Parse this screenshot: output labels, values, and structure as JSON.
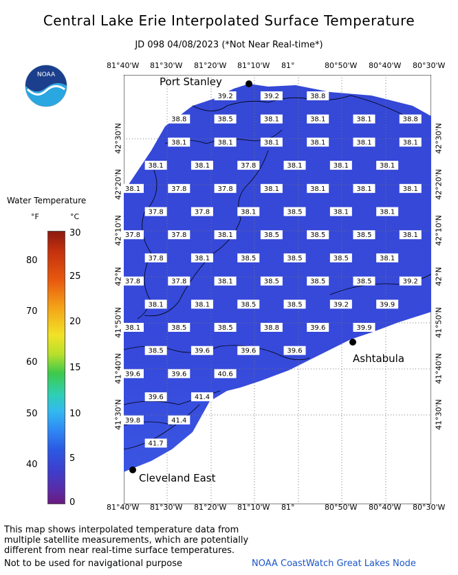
{
  "header": {
    "title": "Central Lake Erie Interpolated Surface Temperature",
    "subtitle": "JD 098 04/08/2023 (*Not Near Real-time*)"
  },
  "logo": {
    "text": "NOAA",
    "icon": "noaa-logo"
  },
  "legend": {
    "title": "Water Temperature",
    "unit_f": "°F",
    "unit_c": "°C",
    "f_ticks": [
      "80",
      "70",
      "60",
      "50",
      "40"
    ],
    "c_ticks": [
      "30",
      "25",
      "20",
      "15",
      "10",
      "5",
      "0"
    ]
  },
  "axes": {
    "lon_labels": [
      "81°40'W",
      "81°30'W",
      "81°20'W",
      "81°10'W",
      "81°",
      "80°50'W",
      "80°40'W",
      "80°30'W"
    ],
    "lat_labels": [
      "42°30'N",
      "42°20'N",
      "42°10'N",
      "42°N",
      "41°50'N",
      "41°40'N",
      "41°30'N"
    ]
  },
  "cities": {
    "port_stanley": "Port Stanley",
    "ashtabula": "Ashtabula",
    "cleveland": "Cleveland East"
  },
  "temps": [
    {
      "r": 0,
      "c": 2,
      "v": "39.2"
    },
    {
      "r": 0,
      "c": 3,
      "v": "39.2"
    },
    {
      "r": 0,
      "c": 4,
      "v": "38.8"
    },
    {
      "r": 1,
      "c": 1,
      "v": "38.8"
    },
    {
      "r": 1,
      "c": 2,
      "v": "38.5"
    },
    {
      "r": 1,
      "c": 3,
      "v": "38.1"
    },
    {
      "r": 1,
      "c": 4,
      "v": "38.1"
    },
    {
      "r": 1,
      "c": 5,
      "v": "38.1"
    },
    {
      "r": 1,
      "c": 6,
      "v": "38.8"
    },
    {
      "r": 2,
      "c": 1,
      "v": "38.1"
    },
    {
      "r": 2,
      "c": 2,
      "v": "38.1"
    },
    {
      "r": 2,
      "c": 3,
      "v": "38.1"
    },
    {
      "r": 2,
      "c": 4,
      "v": "38.1"
    },
    {
      "r": 2,
      "c": 5,
      "v": "38.1"
    },
    {
      "r": 2,
      "c": 6,
      "v": "38.1"
    },
    {
      "r": 2,
      "c": 7,
      "v": "38.1"
    },
    {
      "r": 3,
      "c": 0.5,
      "v": "38.1"
    },
    {
      "r": 3,
      "c": 1.5,
      "v": "38.1"
    },
    {
      "r": 3,
      "c": 2.5,
      "v": "37.8"
    },
    {
      "r": 3,
      "c": 3.5,
      "v": "38.1"
    },
    {
      "r": 3,
      "c": 4.5,
      "v": "38.1"
    },
    {
      "r": 3,
      "c": 5.5,
      "v": "38.1"
    },
    {
      "r": 4,
      "c": 0,
      "v": "38.1"
    },
    {
      "r": 4,
      "c": 1,
      "v": "37.8"
    },
    {
      "r": 4,
      "c": 2,
      "v": "37.8"
    },
    {
      "r": 4,
      "c": 3,
      "v": "38.1"
    },
    {
      "r": 4,
      "c": 4,
      "v": "38.1"
    },
    {
      "r": 4,
      "c": 5,
      "v": "38.1"
    },
    {
      "r": 4,
      "c": 6,
      "v": "38.1"
    },
    {
      "r": 5,
      "c": 0.5,
      "v": "37.8"
    },
    {
      "r": 5,
      "c": 1.5,
      "v": "37.8"
    },
    {
      "r": 5,
      "c": 2.5,
      "v": "38.1"
    },
    {
      "r": 5,
      "c": 3.5,
      "v": "38.5"
    },
    {
      "r": 5,
      "c": 4.5,
      "v": "38.1"
    },
    {
      "r": 5,
      "c": 5.5,
      "v": "38.1"
    },
    {
      "r": 6,
      "c": 0,
      "v": "37.8"
    },
    {
      "r": 6,
      "c": 1,
      "v": "37.8"
    },
    {
      "r": 6,
      "c": 2,
      "v": "38.1"
    },
    {
      "r": 6,
      "c": 3,
      "v": "38.5"
    },
    {
      "r": 6,
      "c": 4,
      "v": "38.5"
    },
    {
      "r": 6,
      "c": 5,
      "v": "38.5"
    },
    {
      "r": 6,
      "c": 6,
      "v": "38.1"
    },
    {
      "r": 7,
      "c": 0.5,
      "v": "37.8"
    },
    {
      "r": 7,
      "c": 1.5,
      "v": "38.1"
    },
    {
      "r": 7,
      "c": 2.5,
      "v": "38.5"
    },
    {
      "r": 7,
      "c": 3.5,
      "v": "38.5"
    },
    {
      "r": 7,
      "c": 4.5,
      "v": "38.5"
    },
    {
      "r": 7,
      "c": 5.5,
      "v": "38.1"
    },
    {
      "r": 8,
      "c": 0,
      "v": "37.8"
    },
    {
      "r": 8,
      "c": 1,
      "v": "37.8"
    },
    {
      "r": 8,
      "c": 2,
      "v": "38.1"
    },
    {
      "r": 8,
      "c": 3,
      "v": "38.5"
    },
    {
      "r": 8,
      "c": 4,
      "v": "38.5"
    },
    {
      "r": 8,
      "c": 5,
      "v": "38.5"
    },
    {
      "r": 8,
      "c": 6,
      "v": "39.2"
    },
    {
      "r": 9,
      "c": 0.5,
      "v": "38.1"
    },
    {
      "r": 9,
      "c": 1.5,
      "v": "38.1"
    },
    {
      "r": 9,
      "c": 2.5,
      "v": "38.5"
    },
    {
      "r": 9,
      "c": 3.5,
      "v": "38.5"
    },
    {
      "r": 9,
      "c": 4.5,
      "v": "39.2"
    },
    {
      "r": 9,
      "c": 5.5,
      "v": "39.9"
    },
    {
      "r": 10,
      "c": 0,
      "v": "38.1"
    },
    {
      "r": 10,
      "c": 1,
      "v": "38.5"
    },
    {
      "r": 10,
      "c": 2,
      "v": "38.5"
    },
    {
      "r": 10,
      "c": 3,
      "v": "38.8"
    },
    {
      "r": 10,
      "c": 4,
      "v": "39.6"
    },
    {
      "r": 10,
      "c": 5,
      "v": "39.9"
    },
    {
      "r": 11,
      "c": 0.5,
      "v": "38.5"
    },
    {
      "r": 11,
      "c": 1.5,
      "v": "39.6"
    },
    {
      "r": 11,
      "c": 2.5,
      "v": "39.6"
    },
    {
      "r": 11,
      "c": 3.5,
      "v": "39.6"
    },
    {
      "r": 12,
      "c": 0,
      "v": "39.6"
    },
    {
      "r": 12,
      "c": 1,
      "v": "39.6"
    },
    {
      "r": 12,
      "c": 2,
      "v": "40.6"
    },
    {
      "r": 13,
      "c": 0.5,
      "v": "39.6"
    },
    {
      "r": 13,
      "c": 1.5,
      "v": "41.4"
    },
    {
      "r": 14,
      "c": 0,
      "v": "39.8"
    },
    {
      "r": 14,
      "c": 1,
      "v": "41.4"
    },
    {
      "r": 15,
      "c": 0.5,
      "v": "41.7"
    }
  ],
  "footer": {
    "line1": "This map shows interpolated temperature data from",
    "line2": "multiple satellite measurements, which are potentially",
    "line3": "different from near real-time surface temperatures.",
    "nav": "Not to be used for navigational purpose",
    "credit": "NOAA CoastWatch Great Lakes Node"
  },
  "colors": {
    "water": "#3549d8",
    "water_light": "#3d55e0",
    "credit": "#1a55c8"
  }
}
